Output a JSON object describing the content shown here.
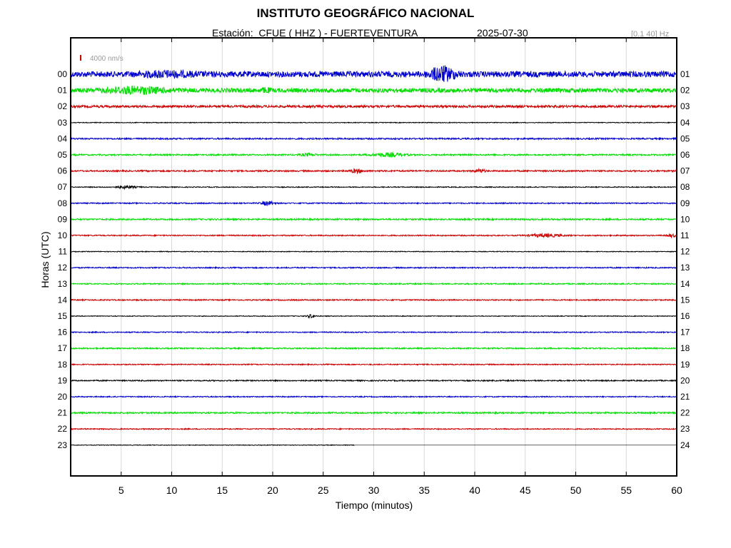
{
  "header": {
    "title": "INSTITUTO GEOGRÁFICO NACIONAL",
    "station_label": "Estación:  CFUE ( HHZ ) - FUERTEVENTURA",
    "date": "2025-07-30",
    "filter_band": "[0.1 40] Hz"
  },
  "scale_bar": {
    "label": "4000 nm/s",
    "color": "#cc0000"
  },
  "colors": {
    "blue": "#0000cc",
    "green": "#00dd00",
    "red": "#cc0000",
    "black": "#000000",
    "grid": "#d9d9d9"
  },
  "chart_data": {
    "type": "line",
    "title": "INSTITUTO GEOGRÁFICO NACIONAL",
    "xlabel": "Tiempo (minutos)",
    "ylabel": "Horas (UTC)",
    "xlim": [
      0,
      60
    ],
    "x_ticks": [
      5,
      10,
      15,
      20,
      25,
      30,
      35,
      40,
      45,
      50,
      55,
      60
    ],
    "left_hour_labels": [
      "00",
      "01",
      "02",
      "03",
      "04",
      "05",
      "06",
      "07",
      "08",
      "09",
      "10",
      "11",
      "12",
      "13",
      "14",
      "15",
      "16",
      "17",
      "18",
      "19",
      "20",
      "21",
      "22",
      "23"
    ],
    "right_hour_labels": [
      "01",
      "02",
      "03",
      "04",
      "05",
      "06",
      "07",
      "08",
      "09",
      "10",
      "11",
      "12",
      "13",
      "14",
      "15",
      "16",
      "17",
      "18",
      "19",
      "20",
      "21",
      "22",
      "23",
      "24"
    ],
    "grid": true,
    "color_cycle": [
      "blue",
      "green",
      "red",
      "black"
    ],
    "trace_noise_amplitude": [
      1.0,
      0.75,
      0.4,
      0.12,
      0.25,
      0.25,
      0.25,
      0.15,
      0.2,
      0.25,
      0.2,
      0.12,
      0.2,
      0.2,
      0.2,
      0.12,
      0.18,
      0.22,
      0.18,
      0.2,
      0.18,
      0.25,
      0.18,
      0.1
    ],
    "last_trace_end_minute": 28.1,
    "bursts": [
      {
        "hour": 0,
        "minute": 36.8,
        "amplitude": 2.2,
        "width_min": 1.2
      },
      {
        "hour": 0,
        "minute": 9.5,
        "amplitude": 0.6,
        "width_min": 2.5
      },
      {
        "hour": 1,
        "minute": 6.5,
        "amplitude": 0.9,
        "width_min": 3.0
      },
      {
        "hour": 1,
        "minute": 19.3,
        "amplitude": 0.6,
        "width_min": 0.4
      },
      {
        "hour": 5,
        "minute": 31.5,
        "amplitude": 0.6,
        "width_min": 1.5
      },
      {
        "hour": 5,
        "minute": 23.5,
        "amplitude": 0.35,
        "width_min": 0.8
      },
      {
        "hour": 6,
        "minute": 28.3,
        "amplitude": 0.6,
        "width_min": 0.6
      },
      {
        "hour": 6,
        "minute": 40.5,
        "amplitude": 0.5,
        "width_min": 0.6
      },
      {
        "hour": 7,
        "minute": 5.5,
        "amplitude": 0.45,
        "width_min": 1.0
      },
      {
        "hour": 8,
        "minute": 19.5,
        "amplitude": 0.7,
        "width_min": 0.6
      },
      {
        "hour": 10,
        "minute": 47.0,
        "amplitude": 0.5,
        "width_min": 1.5
      },
      {
        "hour": 10,
        "minute": 59.5,
        "amplitude": 0.5,
        "width_min": 0.4
      },
      {
        "hour": 15,
        "minute": 23.8,
        "amplitude": 0.6,
        "width_min": 0.4
      }
    ]
  }
}
